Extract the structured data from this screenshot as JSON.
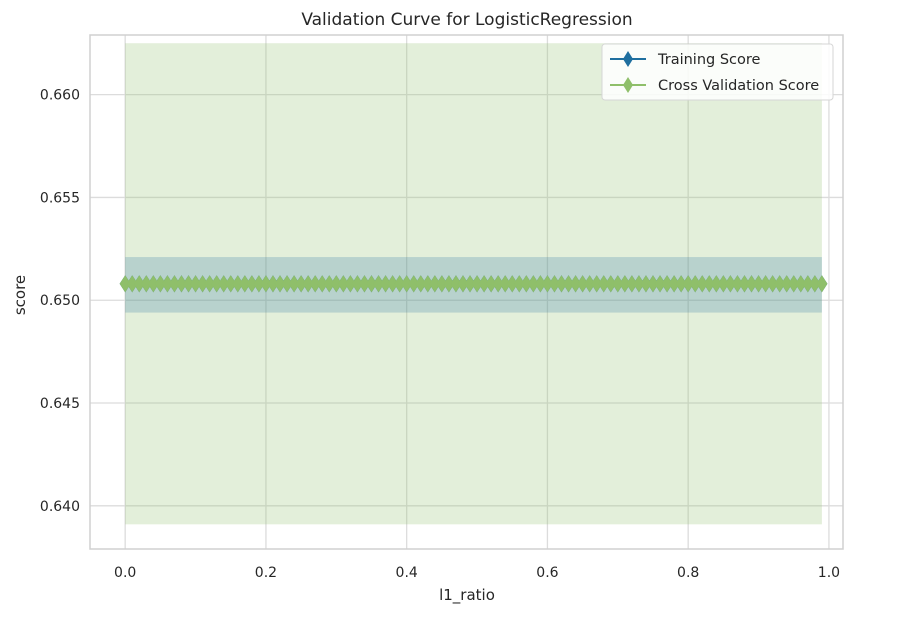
{
  "chart_data": {
    "type": "line",
    "title": "Validation Curve for LogisticRegression",
    "xlabel": "l1_ratio",
    "ylabel": "score",
    "xlim": [
      -0.05,
      1.02
    ],
    "ylim": [
      0.6379,
      0.6629
    ],
    "xticks": [
      "0.0",
      "0.2",
      "0.4",
      "0.6",
      "0.8",
      "1.0"
    ],
    "xtick_values": [
      0.0,
      0.2,
      0.4,
      0.6,
      0.8,
      1.0
    ],
    "yticks": [
      "0.640",
      "0.645",
      "0.650",
      "0.655",
      "0.660"
    ],
    "ytick_values": [
      0.64,
      0.645,
      0.65,
      0.655,
      0.66
    ],
    "grid": true,
    "legend_position": "top-right",
    "x_range": {
      "start": 0.0,
      "end": 0.99,
      "step": 0.01
    },
    "series": [
      {
        "name": "Training Score",
        "color": "#1f6f9f",
        "marker": "diamond",
        "value": 0.6508,
        "band": [
          0.6494,
          0.6521
        ]
      },
      {
        "name": "Cross Validation Score",
        "color": "#8fbf6a",
        "marker": "diamond",
        "value": 0.6508,
        "band": [
          0.6391,
          0.6625
        ]
      }
    ]
  }
}
